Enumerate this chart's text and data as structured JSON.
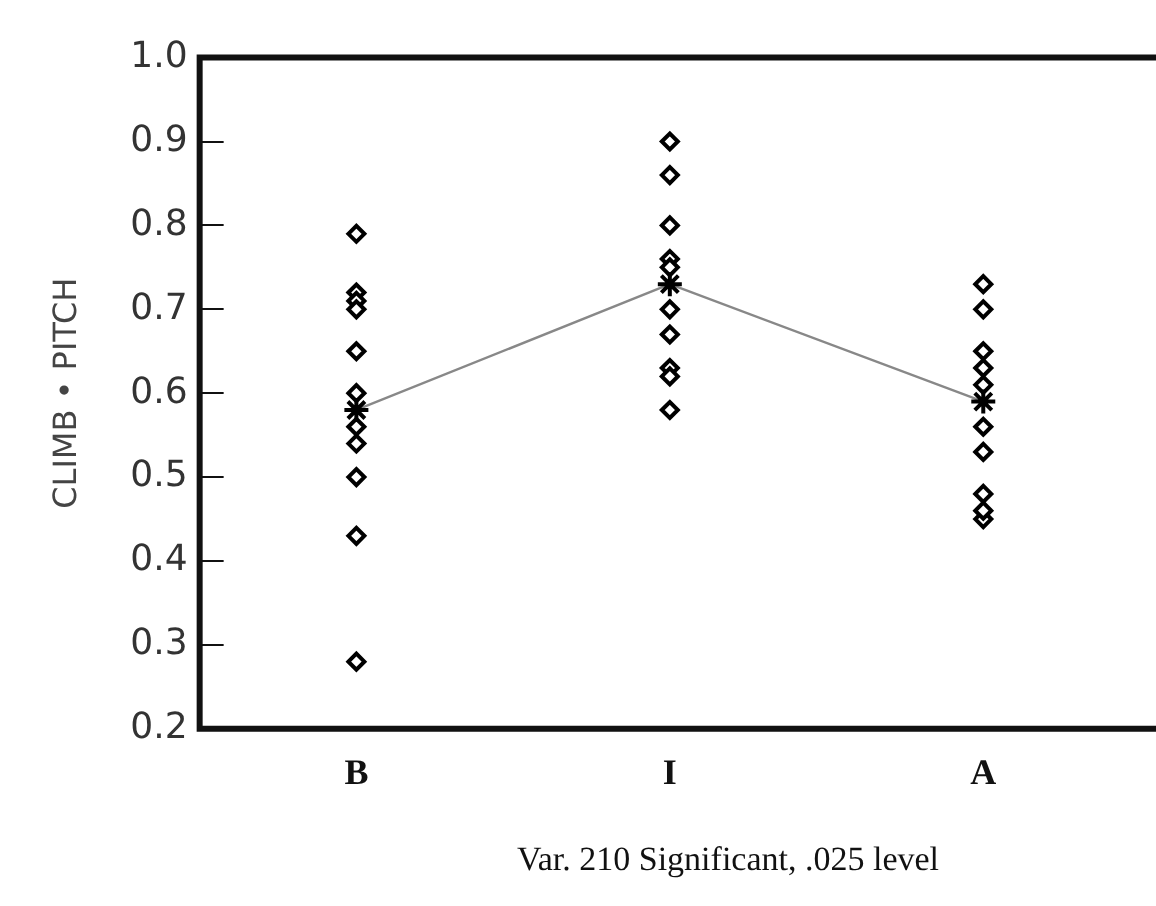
{
  "chart_data": {
    "type": "scatter",
    "categories": [
      "B",
      "I",
      "A"
    ],
    "series": [
      {
        "color": "#000000",
        "marker": "diamond",
        "x": [
          "B",
          "B",
          "B",
          "B",
          "B",
          "B",
          "B",
          "B",
          "B",
          "B",
          "B",
          "I",
          "I",
          "I",
          "I",
          "I",
          "I",
          "I",
          "I",
          "I",
          "I",
          "A",
          "A",
          "A",
          "A",
          "A",
          "A",
          "A",
          "A",
          "A",
          "A"
        ],
        "values": [
          0.79,
          0.72,
          0.71,
          0.7,
          0.65,
          0.6,
          0.56,
          0.54,
          0.5,
          0.43,
          0.28,
          0.9,
          0.86,
          0.8,
          0.76,
          0.75,
          0.7,
          0.67,
          0.63,
          0.62,
          0.58,
          0.73,
          0.7,
          0.65,
          0.63,
          0.61,
          0.56,
          0.53,
          0.48,
          0.45,
          0.46
        ]
      },
      {
        "type": "line",
        "color": "#888888",
        "marker": "cross",
        "values": [
          0.58,
          0.73,
          0.59
        ]
      }
    ],
    "ylabel": "CLIMB • PITCH",
    "ylim": [
      0.2,
      1.0
    ],
    "yticks": [
      {
        "value": 0.2,
        "label": "0.2"
      },
      {
        "value": 0.3,
        "label": "0.3"
      },
      {
        "value": 0.4,
        "label": "0.4"
      },
      {
        "value": 0.5,
        "label": "0.5"
      },
      {
        "value": 0.6,
        "label": "0.6"
      },
      {
        "value": 0.7,
        "label": "0.7"
      },
      {
        "value": 0.8,
        "label": "0.8"
      },
      {
        "value": 0.9,
        "label": "0.9"
      },
      {
        "value": 1.0,
        "label": "1.0"
      }
    ],
    "grid": false,
    "legend": false,
    "annotations": [
      "Var. 210 Significant, .025 level"
    ]
  }
}
